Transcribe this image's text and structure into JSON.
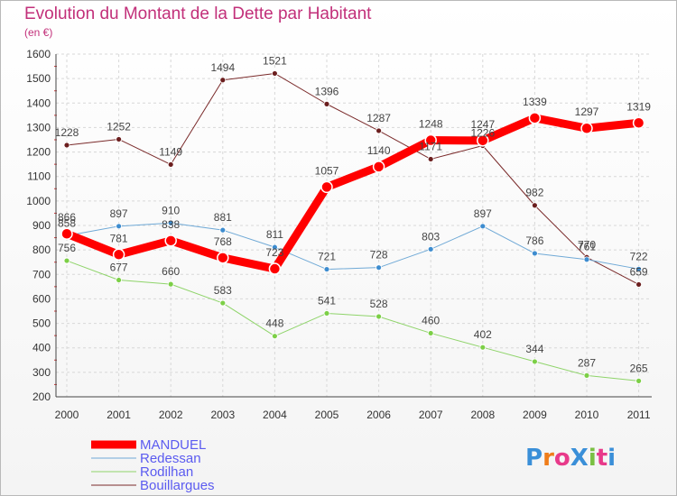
{
  "header": {
    "title": "Evolution du Montant de la Dette par Habitant",
    "subtitle": "(en €)"
  },
  "logo": {
    "text": "ProXiti",
    "colors": [
      "#3a8fd8",
      "#ef7d1a",
      "#e83a8a",
      "#3a8fd8",
      "#7ac043",
      "#e83a8a",
      "#3a8fd8"
    ]
  },
  "chart_data": {
    "type": "line",
    "title": "Evolution du Montant de la Dette par Habitant",
    "subtitle": "(en €)",
    "xlabel": "",
    "ylabel": "",
    "categories": [
      "2000",
      "2001",
      "2002",
      "2003",
      "2004",
      "2005",
      "2006",
      "2007",
      "2008",
      "2009",
      "2010",
      "2011"
    ],
    "ylim": [
      200,
      1600
    ],
    "yticks": [
      200,
      300,
      400,
      500,
      600,
      700,
      800,
      900,
      1000,
      1100,
      1200,
      1300,
      1400,
      1500,
      1600
    ],
    "grid": true,
    "legend_position": "bottom-left",
    "series": [
      {
        "name": "Bouillargues",
        "color": "#7a2a2a",
        "dot": "#6b1e1e",
        "width": 1,
        "r": 3,
        "values": [
          1228,
          1252,
          1149,
          1494,
          1521,
          1396,
          1287,
          1171,
          1226,
          982,
          770,
          659
        ]
      },
      {
        "name": "Rodilhan",
        "color": "#8fd46a",
        "dot": "#7ccf46",
        "width": 1,
        "r": 3,
        "values": [
          756,
          677,
          660,
          583,
          448,
          541,
          528,
          460,
          402,
          344,
          287,
          265
        ]
      },
      {
        "name": "Redessan",
        "color": "#6fa9d6",
        "dot": "#3d8ccf",
        "width": 1,
        "r": 3,
        "values": [
          858,
          897,
          910,
          881,
          811,
          721,
          728,
          803,
          897,
          786,
          761,
          722
        ]
      },
      {
        "name": "MANDUEL",
        "color": "#ff0000",
        "dot": "#ff0000",
        "width": 9,
        "r": 6,
        "values": [
          866,
          781,
          838,
          768,
          723,
          1057,
          1140,
          1248,
          1247,
          1339,
          1297,
          1319
        ]
      }
    ]
  }
}
